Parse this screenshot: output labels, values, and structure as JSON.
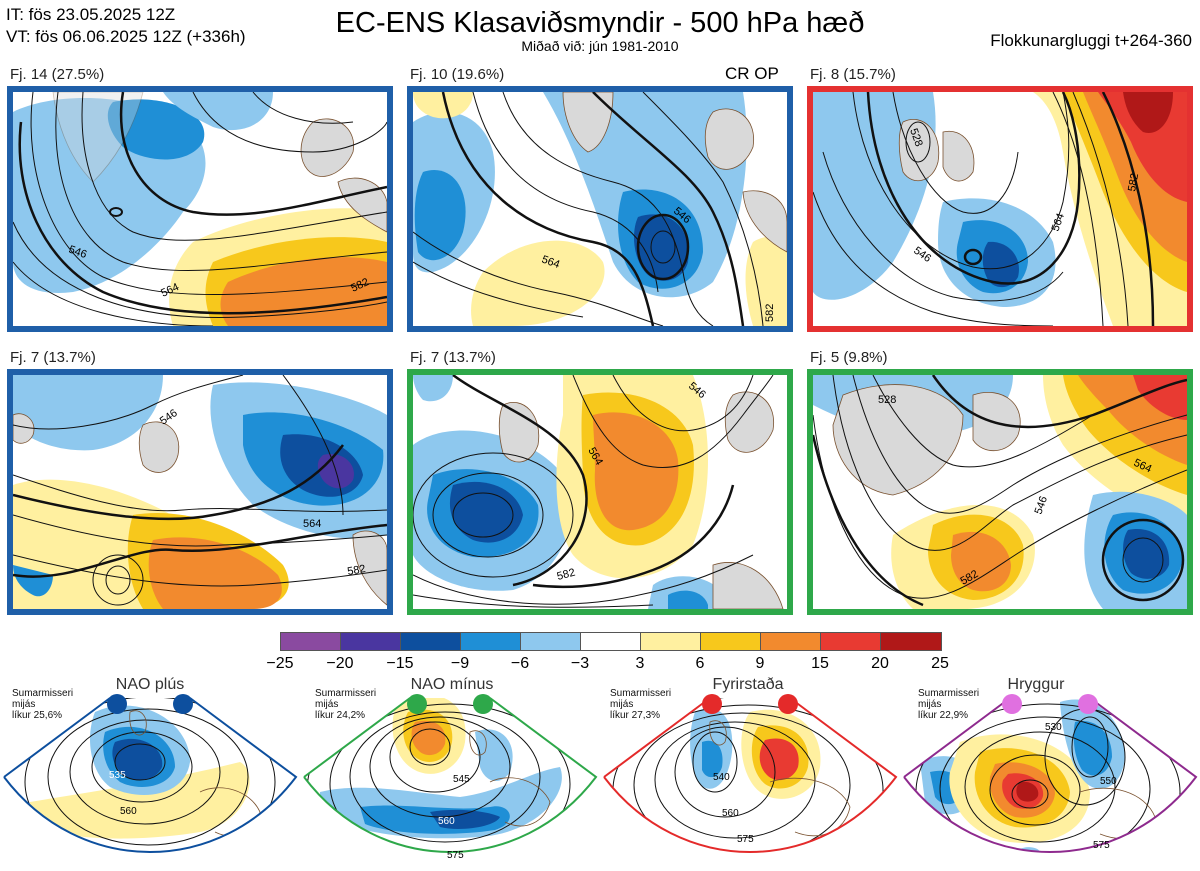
{
  "header": {
    "it_line": "IT: fös 23.05.2025 12Z",
    "vt_line": "VT: fös 06.06.2025 12Z  (+336h)",
    "title": "EC-ENS Klasaviðsmyndir - 500 hPa hæð",
    "subtitle": "Miðað við: jún 1981-2010",
    "window": "Flokkunargluggi t+264-360"
  },
  "panels": [
    {
      "label": "Fj. 14 (27.5%)",
      "frame_color": "#1f5fa8",
      "contours": [
        "546",
        "564",
        "582"
      ]
    },
    {
      "label": "Fj. 10 (19.6%)",
      "frame_color": "#1f5fa8",
      "tag": "CR OP",
      "contours": [
        "546",
        "564",
        "582"
      ]
    },
    {
      "label": "Fj. 8 (15.7%)",
      "frame_color": "#e43131",
      "contours": [
        "528",
        "546",
        "564",
        "582"
      ]
    },
    {
      "label": "Fj. 7 (13.7%)",
      "frame_color": "#1f5fa8",
      "contours": [
        "546",
        "564",
        "582"
      ]
    },
    {
      "label": "Fj. 7 (13.7%)",
      "frame_color": "#2ea84a",
      "contours": [
        "546",
        "564",
        "582"
      ]
    },
    {
      "label": "Fj. 5 (9.8%)",
      "frame_color": "#2ea84a",
      "contours": [
        "528",
        "546",
        "564",
        "582"
      ]
    }
  ],
  "colorbar": {
    "colors": [
      "#8a4aa0",
      "#4a36a0",
      "#0d4f9e",
      "#1f8fd6",
      "#8ec8ee",
      "#ffffff",
      "#fff0a0",
      "#f7c81c",
      "#f28a2e",
      "#e83a32",
      "#b01818"
    ],
    "ticks": [
      "−25",
      "−20",
      "−15",
      "−9",
      "−6",
      "−3",
      "3",
      "6",
      "9",
      "15",
      "20",
      "25"
    ]
  },
  "regimes": [
    {
      "name": "NAO plús",
      "note_1": "Sumarmisseri",
      "note_2": "mijás",
      "note_3": "líkur 25,6%",
      "color": "#0d4f9e",
      "contours": [
        "535",
        "560"
      ]
    },
    {
      "name": "NAO mínus",
      "note_1": "Sumarmisseri",
      "note_2": "mijás",
      "note_3": "líkur 24,2%",
      "color": "#2ea84a",
      "contours": [
        "545",
        "560",
        "575"
      ]
    },
    {
      "name": "Fyrirstaða",
      "note_1": "Sumarmisseri",
      "note_2": "mijás",
      "note_3": "líkur 27,3%",
      "color": "#e42a2a",
      "contours": [
        "540",
        "560",
        "575"
      ]
    },
    {
      "name": "Hryggur",
      "note_1": "Sumarmisseri",
      "note_2": "mijás",
      "note_3": "líkur 22,9%",
      "color": "#e070e0",
      "contours": [
        "530",
        "550",
        "575"
      ]
    }
  ]
}
